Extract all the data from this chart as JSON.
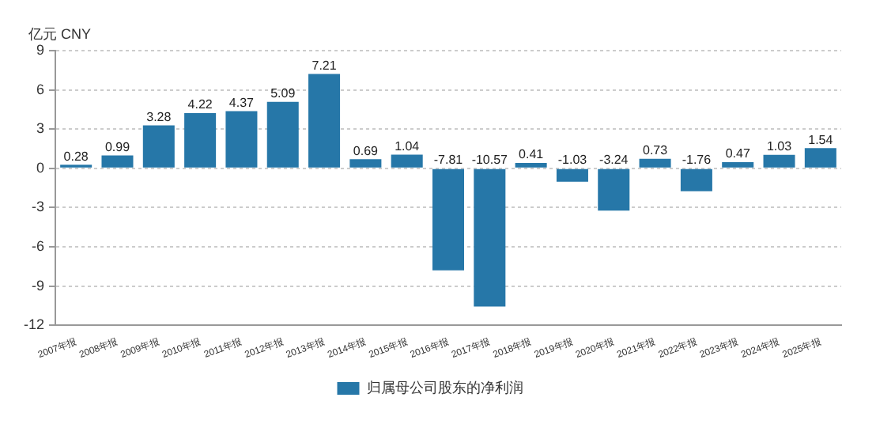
{
  "chart_data": {
    "type": "bar",
    "ylabel": "亿元 CNY",
    "categories": [
      "2007年报",
      "2008年报",
      "2009年报",
      "2010年报",
      "2011年报",
      "2012年报",
      "2013年报",
      "2014年报",
      "2015年报",
      "2016年报",
      "2017年报",
      "2018年报",
      "2019年报",
      "2020年报",
      "2021年报",
      "2022年报",
      "2023年报",
      "2024年报",
      "2025年报"
    ],
    "series": [
      {
        "name": "归属母公司股东的净利润",
        "color": "#2677a8",
        "values": [
          0.28,
          0.99,
          3.28,
          4.22,
          4.37,
          5.09,
          7.21,
          0.69,
          1.04,
          -7.81,
          -10.57,
          0.41,
          -1.03,
          -3.24,
          0.73,
          -1.76,
          0.47,
          1.03,
          1.54
        ]
      }
    ],
    "ylim": [
      -12,
      9
    ],
    "yticks": [
      -12,
      -9,
      -6,
      -3,
      0,
      3,
      6,
      9
    ],
    "grid": "y",
    "legend": "bottom",
    "data_labels": true
  }
}
